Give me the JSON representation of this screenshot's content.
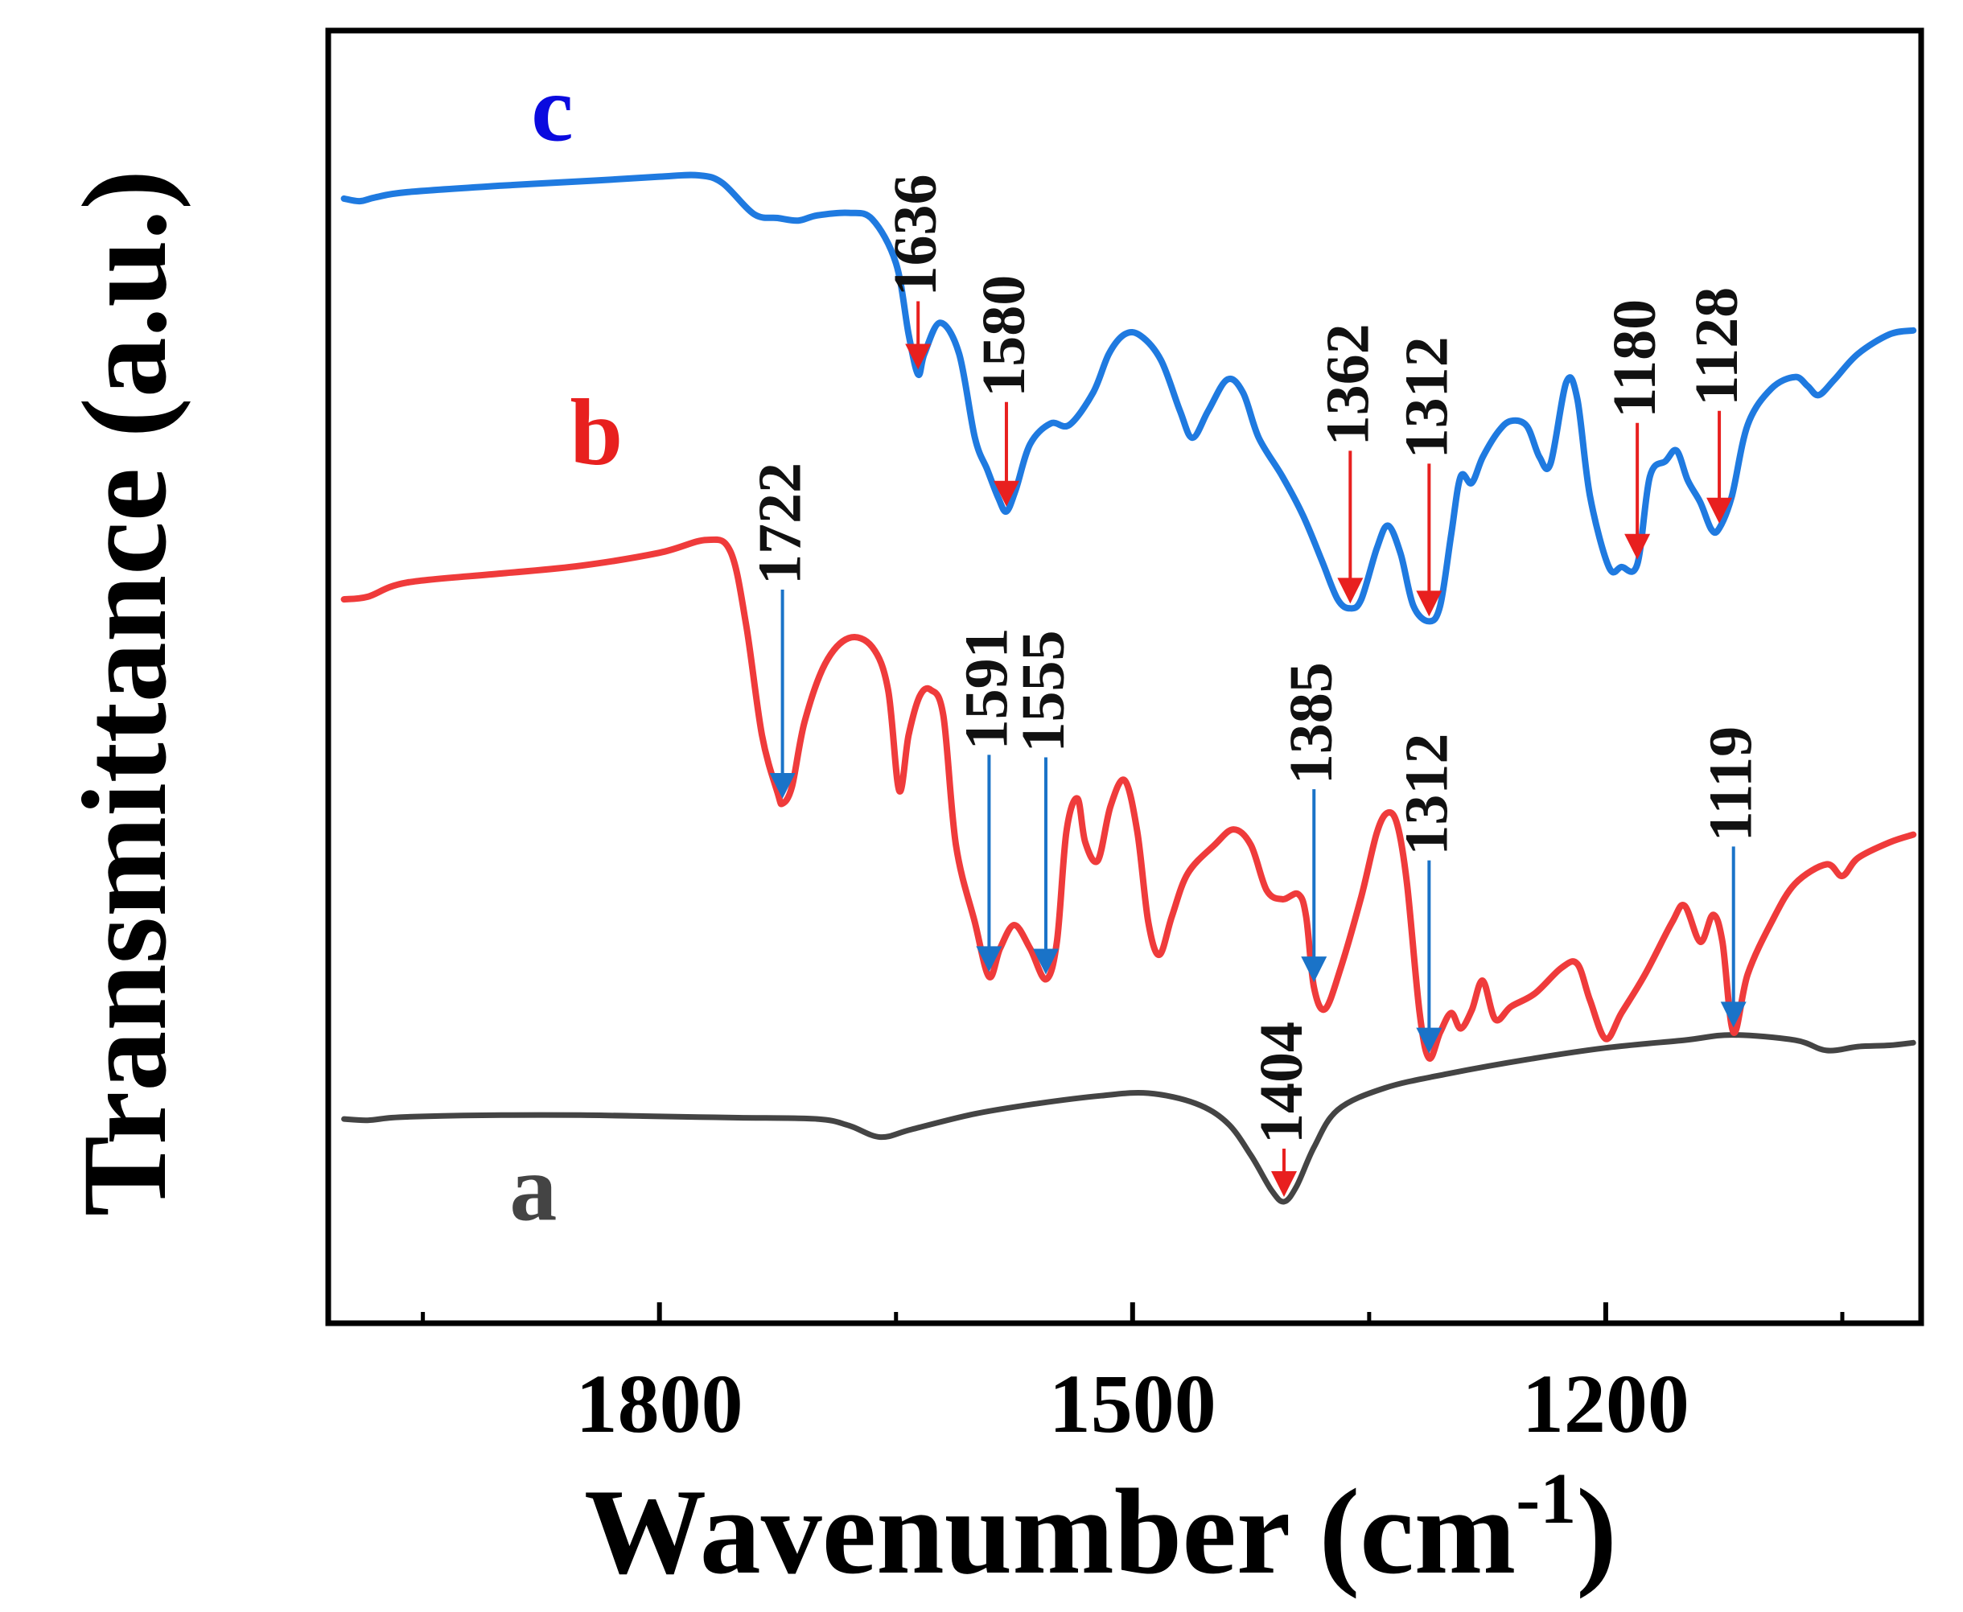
{
  "chart_data": {
    "type": "line",
    "title": "",
    "xlabel": "Wavenumber (cm",
    "xlabel_sup": "-1",
    "xlabel_close": ")",
    "ylabel": "Transmittance (a.u.)",
    "xlim": [
      2010,
      1000
    ],
    "ylim": [
      0,
      100
    ],
    "x_ticks": [
      1800,
      1500,
      1200
    ],
    "x_minor_ticks": [
      1950,
      1650,
      1350,
      1050
    ],
    "y_ticks_shown": false,
    "series": [
      {
        "name": "a",
        "color": "#444444",
        "label_color": "#444444",
        "label_at": [
          1880,
          8
        ],
        "points": [
          [
            2000,
            15.8
          ],
          [
            1985,
            15.7
          ],
          [
            1970,
            15.9
          ],
          [
            1950,
            16.0
          ],
          [
            1900,
            16.1
          ],
          [
            1850,
            16.1
          ],
          [
            1800,
            16.0
          ],
          [
            1750,
            15.9
          ],
          [
            1700,
            15.8
          ],
          [
            1680,
            15.3
          ],
          [
            1660,
            14.4
          ],
          [
            1640,
            15.0
          ],
          [
            1600,
            16.2
          ],
          [
            1560,
            17.0
          ],
          [
            1520,
            17.6
          ],
          [
            1490,
            17.8
          ],
          [
            1460,
            17.0
          ],
          [
            1440,
            15.5
          ],
          [
            1425,
            13.0
          ],
          [
            1412,
            10.3
          ],
          [
            1404,
            9.4
          ],
          [
            1396,
            10.6
          ],
          [
            1385,
            13.6
          ],
          [
            1370,
            16.5
          ],
          [
            1340,
            18.2
          ],
          [
            1300,
            19.3
          ],
          [
            1250,
            20.4
          ],
          [
            1200,
            21.3
          ],
          [
            1150,
            21.9
          ],
          [
            1120,
            22.3
          ],
          [
            1080,
            21.9
          ],
          [
            1060,
            21.1
          ],
          [
            1040,
            21.4
          ],
          [
            1020,
            21.5
          ],
          [
            1005,
            21.7
          ]
        ]
      },
      {
        "name": "b",
        "color": "#ef3b3b",
        "label_color": "#e8201f",
        "label_at": [
          1840,
          66.5
        ],
        "points": [
          [
            2000,
            56.0
          ],
          [
            1985,
            56.2
          ],
          [
            1960,
            57.3
          ],
          [
            1900,
            58.0
          ],
          [
            1850,
            58.6
          ],
          [
            1800,
            59.6
          ],
          [
            1770,
            60.6
          ],
          [
            1755,
            59.7
          ],
          [
            1745,
            54.0
          ],
          [
            1735,
            45.5
          ],
          [
            1725,
            41.0
          ],
          [
            1722,
            40.2
          ],
          [
            1716,
            41.5
          ],
          [
            1708,
            46.5
          ],
          [
            1695,
            51.0
          ],
          [
            1680,
            53.0
          ],
          [
            1665,
            52.3
          ],
          [
            1655,
            49.0
          ],
          [
            1648,
            41.2
          ],
          [
            1642,
            45.5
          ],
          [
            1635,
            48.5
          ],
          [
            1628,
            49.0
          ],
          [
            1620,
            47.0
          ],
          [
            1612,
            37.0
          ],
          [
            1600,
            31.0
          ],
          [
            1591,
            26.8
          ],
          [
            1584,
            29.0
          ],
          [
            1575,
            30.8
          ],
          [
            1565,
            29.0
          ],
          [
            1555,
            26.6
          ],
          [
            1548,
            29.5
          ],
          [
            1542,
            38.0
          ],
          [
            1535,
            40.6
          ],
          [
            1530,
            37.2
          ],
          [
            1522,
            35.8
          ],
          [
            1514,
            40.0
          ],
          [
            1505,
            42.0
          ],
          [
            1497,
            38.0
          ],
          [
            1490,
            31.0
          ],
          [
            1483,
            28.5
          ],
          [
            1475,
            31.5
          ],
          [
            1465,
            34.8
          ],
          [
            1448,
            37.0
          ],
          [
            1436,
            38.2
          ],
          [
            1425,
            37.0
          ],
          [
            1415,
            33.5
          ],
          [
            1405,
            32.8
          ],
          [
            1395,
            33.2
          ],
          [
            1390,
            31.5
          ],
          [
            1385,
            26.0
          ],
          [
            1378,
            24.3
          ],
          [
            1368,
            27.5
          ],
          [
            1355,
            33.0
          ],
          [
            1345,
            38.0
          ],
          [
            1338,
            39.5
          ],
          [
            1332,
            38.5
          ],
          [
            1326,
            34.0
          ],
          [
            1318,
            24.0
          ],
          [
            1312,
            20.5
          ],
          [
            1305,
            22.5
          ],
          [
            1298,
            24.0
          ],
          [
            1292,
            22.8
          ],
          [
            1285,
            24.2
          ],
          [
            1278,
            26.5
          ],
          [
            1270,
            23.5
          ],
          [
            1260,
            24.5
          ],
          [
            1245,
            25.5
          ],
          [
            1228,
            27.5
          ],
          [
            1218,
            27.8
          ],
          [
            1210,
            25.0
          ],
          [
            1200,
            22.0
          ],
          [
            1190,
            24.0
          ],
          [
            1175,
            27.0
          ],
          [
            1158,
            31.0
          ],
          [
            1150,
            32.3
          ],
          [
            1140,
            29.5
          ],
          [
            1132,
            31.6
          ],
          [
            1126,
            29.5
          ],
          [
            1119,
            22.5
          ],
          [
            1110,
            27.0
          ],
          [
            1095,
            31.0
          ],
          [
            1080,
            34.0
          ],
          [
            1060,
            35.5
          ],
          [
            1050,
            34.6
          ],
          [
            1040,
            36.0
          ],
          [
            1020,
            37.2
          ],
          [
            1005,
            37.8
          ]
        ]
      },
      {
        "name": "c",
        "color": "#1f7ae0",
        "label_color": "#0a0adf",
        "label_at": [
          1868,
          91.5
        ],
        "points": [
          [
            2000,
            87.0
          ],
          [
            1990,
            86.8
          ],
          [
            1980,
            87.1
          ],
          [
            1960,
            87.5
          ],
          [
            1900,
            88.0
          ],
          [
            1840,
            88.4
          ],
          [
            1800,
            88.7
          ],
          [
            1775,
            88.8
          ],
          [
            1760,
            88.2
          ],
          [
            1740,
            85.8
          ],
          [
            1725,
            85.5
          ],
          [
            1712,
            85.3
          ],
          [
            1700,
            85.7
          ],
          [
            1680,
            85.9
          ],
          [
            1665,
            85.4
          ],
          [
            1650,
            82.0
          ],
          [
            1642,
            76.5
          ],
          [
            1636,
            73.4
          ],
          [
            1632,
            75.0
          ],
          [
            1622,
            77.4
          ],
          [
            1610,
            75.0
          ],
          [
            1600,
            68.5
          ],
          [
            1592,
            66.0
          ],
          [
            1585,
            63.8
          ],
          [
            1580,
            62.8
          ],
          [
            1574,
            64.5
          ],
          [
            1565,
            68.0
          ],
          [
            1552,
            69.6
          ],
          [
            1540,
            69.5
          ],
          [
            1525,
            72.0
          ],
          [
            1515,
            75.0
          ],
          [
            1505,
            76.5
          ],
          [
            1495,
            76.4
          ],
          [
            1482,
            74.5
          ],
          [
            1470,
            70.6
          ],
          [
            1462,
            68.5
          ],
          [
            1452,
            70.6
          ],
          [
            1440,
            73.0
          ],
          [
            1430,
            72.0
          ],
          [
            1420,
            68.5
          ],
          [
            1405,
            65.5
          ],
          [
            1392,
            62.5
          ],
          [
            1380,
            59.0
          ],
          [
            1370,
            56.0
          ],
          [
            1362,
            55.3
          ],
          [
            1355,
            56.0
          ],
          [
            1345,
            60.0
          ],
          [
            1338,
            61.7
          ],
          [
            1330,
            59.5
          ],
          [
            1322,
            55.5
          ],
          [
            1312,
            54.3
          ],
          [
            1305,
            55.5
          ],
          [
            1298,
            61.0
          ],
          [
            1292,
            65.5
          ],
          [
            1285,
            65.0
          ],
          [
            1278,
            67.0
          ],
          [
            1268,
            69.0
          ],
          [
            1260,
            69.8
          ],
          [
            1250,
            69.4
          ],
          [
            1242,
            67.0
          ],
          [
            1235,
            66.5
          ],
          [
            1225,
            72.8
          ],
          [
            1218,
            71.5
          ],
          [
            1210,
            64.0
          ],
          [
            1198,
            58.5
          ],
          [
            1190,
            58.5
          ],
          [
            1180,
            58.7
          ],
          [
            1172,
            65.5
          ],
          [
            1162,
            66.7
          ],
          [
            1155,
            67.5
          ],
          [
            1148,
            65.2
          ],
          [
            1140,
            63.5
          ],
          [
            1133,
            61.4
          ],
          [
            1128,
            61.5
          ],
          [
            1120,
            64.0
          ],
          [
            1110,
            69.5
          ],
          [
            1095,
            72.3
          ],
          [
            1080,
            73.2
          ],
          [
            1072,
            72.5
          ],
          [
            1065,
            71.8
          ],
          [
            1055,
            73.0
          ],
          [
            1040,
            75.0
          ],
          [
            1020,
            76.5
          ],
          [
            1005,
            76.8
          ]
        ]
      }
    ],
    "annotations": [
      {
        "label": "1404",
        "series": "a",
        "wavenumber": 1404,
        "arrow_color": "#e8201f"
      },
      {
        "label": "1722",
        "series": "b",
        "wavenumber": 1722,
        "arrow_color": "#1a73c8"
      },
      {
        "label": "1591",
        "series": "b",
        "wavenumber": 1591,
        "arrow_color": "#1a73c8"
      },
      {
        "label": "1555",
        "series": "b",
        "wavenumber": 1555,
        "arrow_color": "#1a73c8"
      },
      {
        "label": "1385",
        "series": "b",
        "wavenumber": 1385,
        "arrow_color": "#1a73c8"
      },
      {
        "label": "1312",
        "series": "b",
        "wavenumber": 1312,
        "arrow_color": "#1a73c8"
      },
      {
        "label": "1119",
        "series": "b",
        "wavenumber": 1119,
        "arrow_color": "#1a73c8"
      },
      {
        "label": "1636",
        "series": "c",
        "wavenumber": 1636,
        "arrow_color": "#e8201f"
      },
      {
        "label": "1580",
        "series": "c",
        "wavenumber": 1580,
        "arrow_color": "#e8201f"
      },
      {
        "label": "1362",
        "series": "c",
        "wavenumber": 1362,
        "arrow_color": "#e8201f"
      },
      {
        "label": "1312",
        "series": "c",
        "wavenumber": 1312,
        "arrow_color": "#e8201f"
      },
      {
        "label": "1180",
        "series": "c",
        "wavenumber": 1180,
        "arrow_color": "#e8201f"
      },
      {
        "label": "1128",
        "series": "c",
        "wavenumber": 1128,
        "arrow_color": "#e8201f"
      }
    ],
    "grid": false,
    "legend": "none"
  }
}
